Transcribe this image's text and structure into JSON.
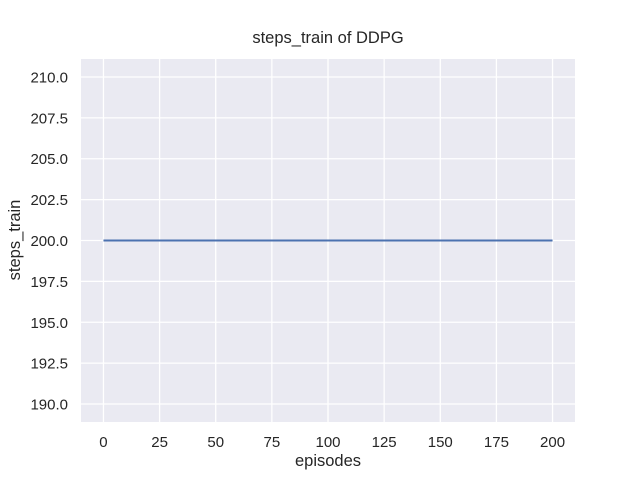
{
  "figure": {
    "background": "#ffffff"
  },
  "chart_data": {
    "type": "line",
    "title": "steps_train of DDPG",
    "xlabel": "episodes",
    "ylabel": "steps_train",
    "xlim": [
      -10,
      210
    ],
    "ylim": [
      188.9,
      211.1
    ],
    "xticks": {
      "values": [
        0,
        25,
        50,
        75,
        100,
        125,
        150,
        175,
        200
      ],
      "labels": [
        "0",
        "25",
        "50",
        "75",
        "100",
        "125",
        "150",
        "175",
        "200"
      ]
    },
    "yticks": {
      "values": [
        190.0,
        192.5,
        195.0,
        197.5,
        200.0,
        202.5,
        205.0,
        207.5,
        210.0
      ],
      "labels": [
        "190.0",
        "192.5",
        "195.0",
        "197.5",
        "200.0",
        "202.5",
        "205.0",
        "207.5",
        "210.0"
      ]
    },
    "grid": true,
    "legend": false,
    "plot_bg": "#eaeaf2",
    "grid_color": "#ffffff",
    "text_color": "#262626",
    "series": [
      {
        "name": "steps_train",
        "color": "#4c72b0",
        "x": [
          0,
          200
        ],
        "y": [
          200,
          200
        ]
      }
    ]
  }
}
